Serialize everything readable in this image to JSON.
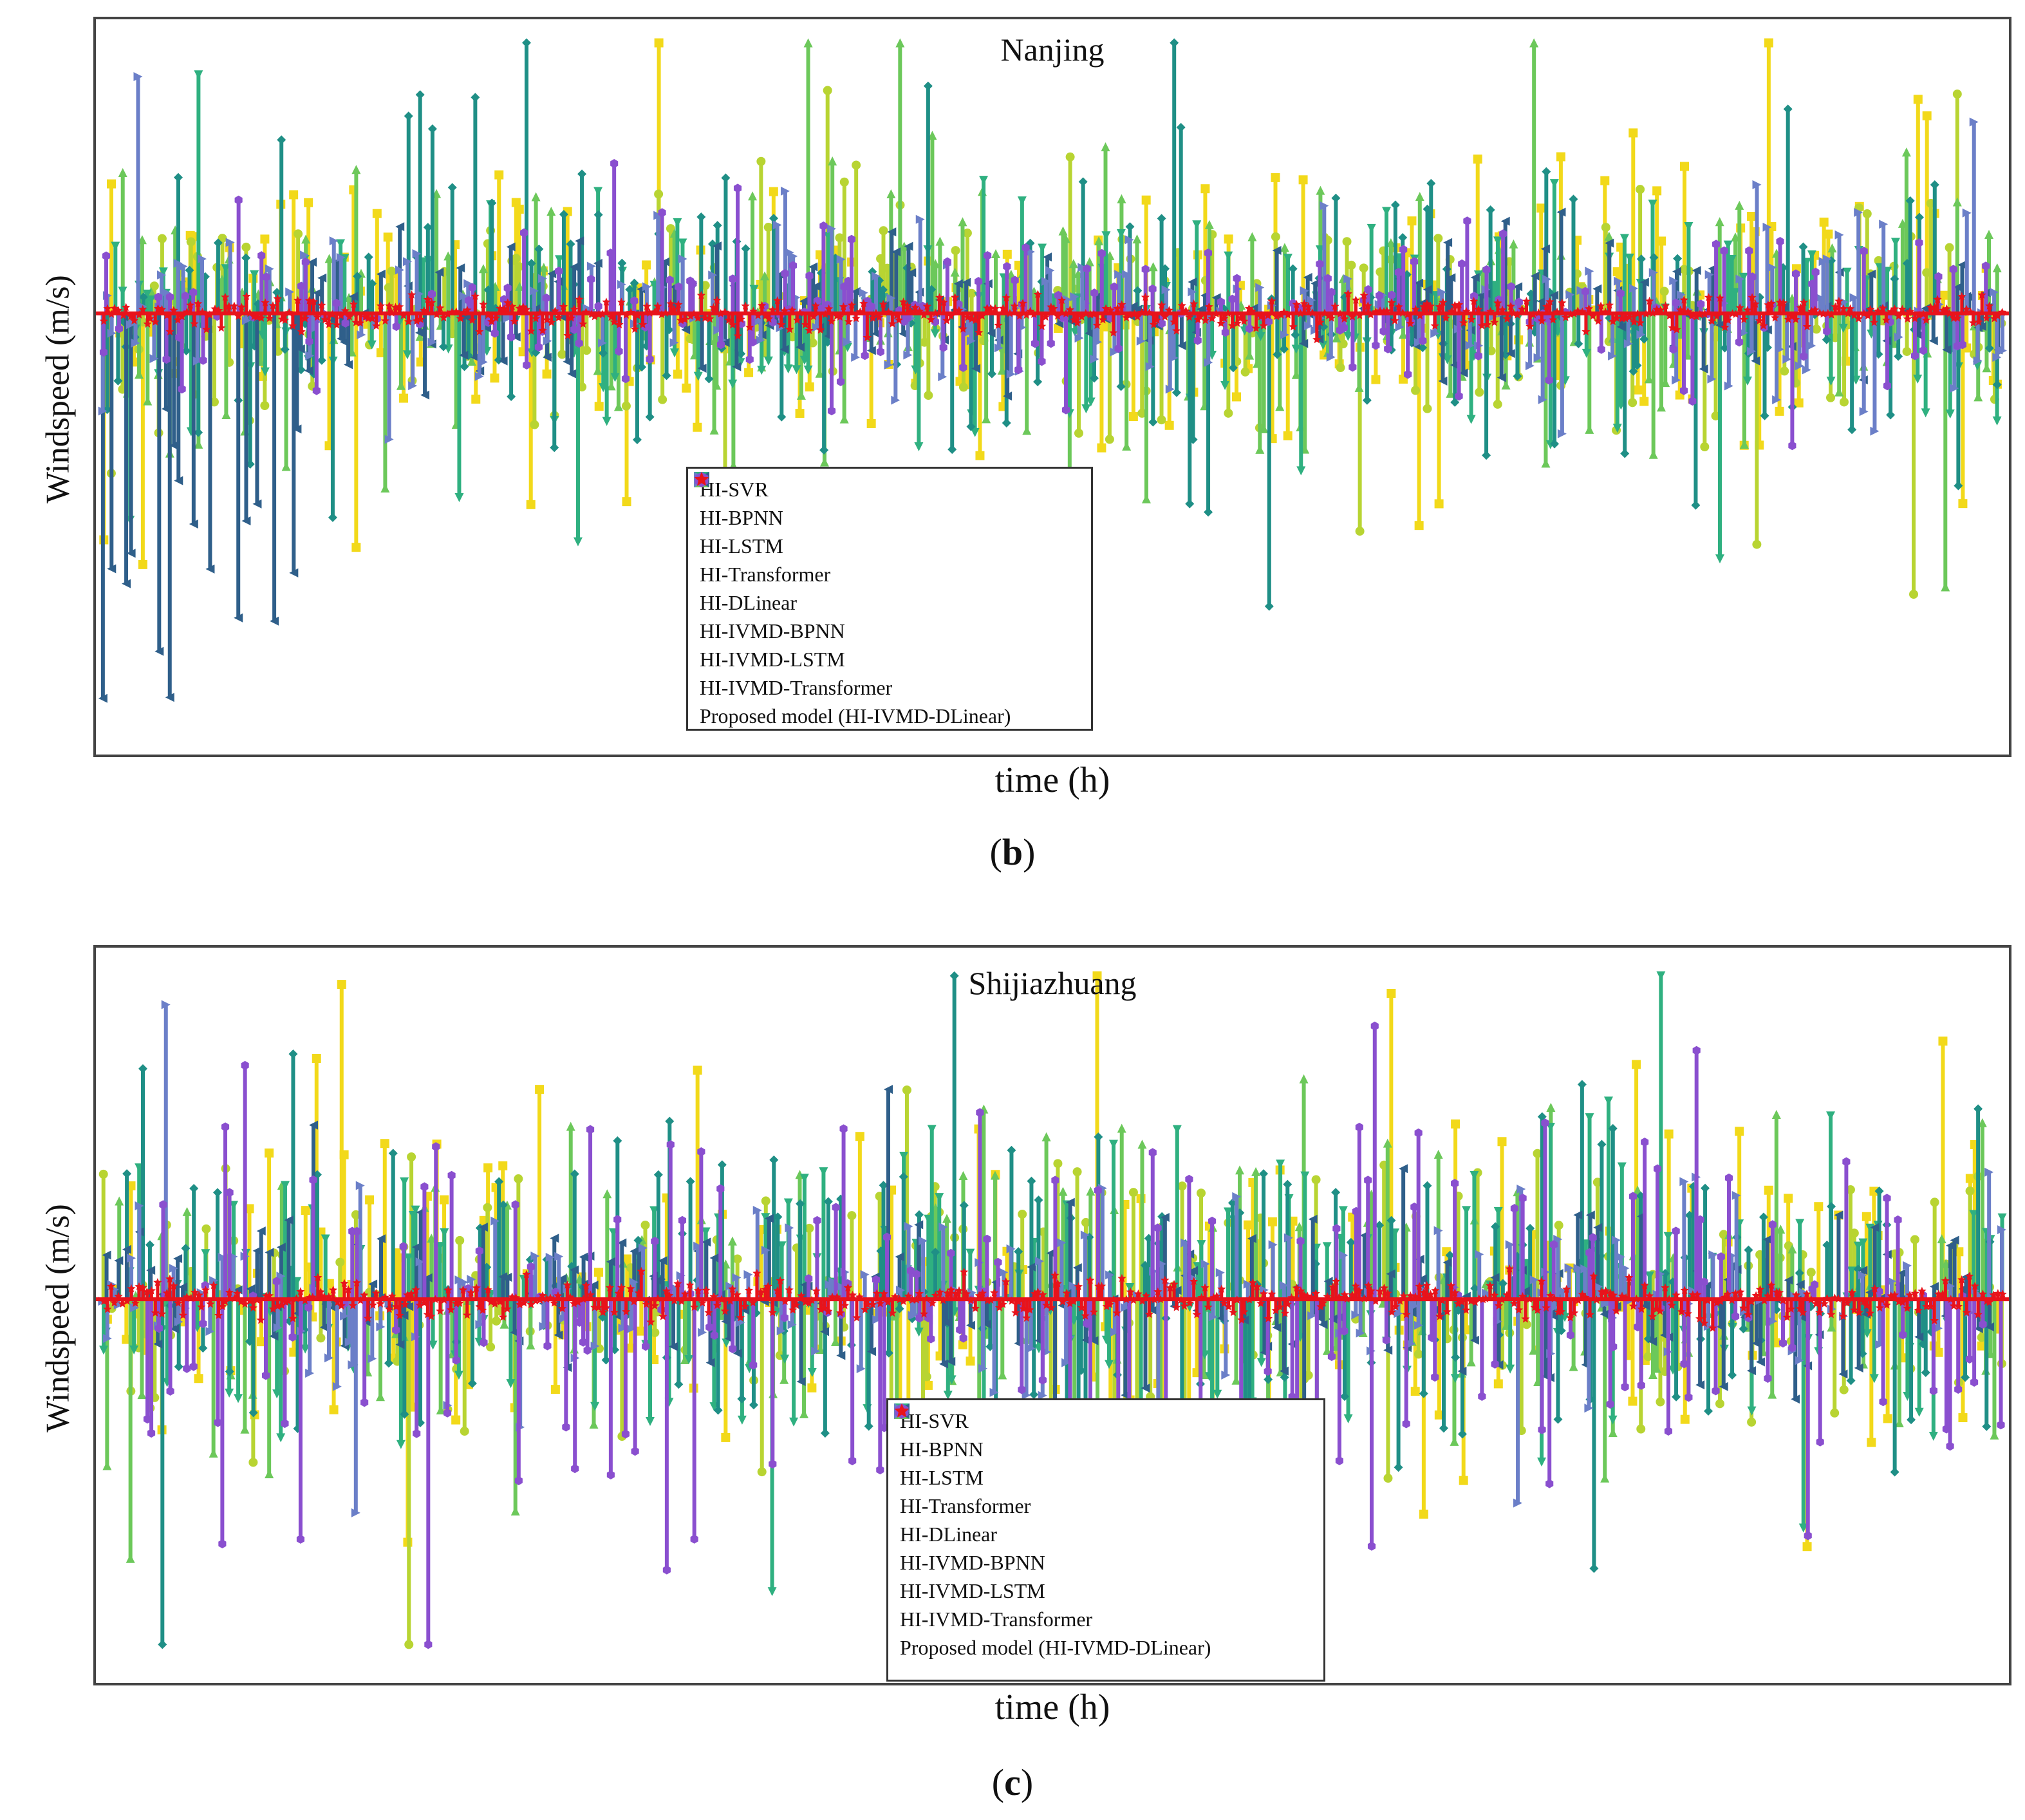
{
  "figure": {
    "xlabel": "time (h)",
    "ylabel": "Windspeed (m/s)",
    "caption_b_open": "(",
    "caption_b_letter": "b",
    "caption_b_close": ")",
    "caption_c_open": "(",
    "caption_c_letter": "c",
    "caption_c_close": ")"
  },
  "legend": [
    {
      "name": "HI-SVR",
      "marker": "square",
      "color": "#f2d91a"
    },
    {
      "name": "HI-BPNN",
      "marker": "circle",
      "color": "#b8d432"
    },
    {
      "name": "HI-LSTM",
      "marker": "triangle-up",
      "color": "#6cc85a"
    },
    {
      "name": "HI-Transformer",
      "marker": "triangle-down",
      "color": "#2fb080"
    },
    {
      "name": "HI-DLinear",
      "marker": "diamond",
      "color": "#1f8f86"
    },
    {
      "name": "HI-IVMD-BPNN",
      "marker": "triangle-left",
      "color": "#2f5f8a"
    },
    {
      "name": "HI-IVMD-LSTM",
      "marker": "triangle-right",
      "color": "#6b7fc8"
    },
    {
      "name": "HI-IVMD-Transformer",
      "marker": "hexagon",
      "color": "#8a4fcf"
    },
    {
      "name": "Proposed model (HI-IVMD-DLinear)",
      "marker": "star",
      "color": "#e8131b"
    }
  ],
  "chart_data": [
    {
      "type": "stem",
      "title": "Nanjing",
      "xlabel": "time (h)",
      "ylabel": "Windspeed (m/s)",
      "n_points": 480,
      "ylim": [
        -1.5,
        1.0
      ],
      "series_amplitude": {
        "HI-SVR": 0.62,
        "HI-BPNN": 0.55,
        "HI-LSTM": 0.55,
        "HI-Transformer": 0.5,
        "HI-DLinear": 0.62,
        "HI-IVMD-BPNN": 0.3,
        "HI-IVMD-LSTM": 0.35,
        "HI-IVMD-Transformer": 0.3,
        "Proposed model (HI-IVMD-DLinear)": 0.06
      },
      "notes": "forecast errors per hour; early segment (first ~50 h) shows large negative HI-IVMD-BPNN errors down to about -1.3"
    },
    {
      "type": "stem",
      "title": "Shijiazhuang",
      "xlabel": "time (h)",
      "ylabel": "Windspeed (m/s)",
      "n_points": 480,
      "ylim": [
        -1.2,
        1.1
      ],
      "series_amplitude": {
        "HI-SVR": 0.6,
        "HI-BPNN": 0.55,
        "HI-LSTM": 0.55,
        "HI-Transformer": 0.5,
        "HI-DLinear": 0.6,
        "HI-IVMD-BPNN": 0.3,
        "HI-IVMD-LSTM": 0.35,
        "HI-IVMD-Transformer": 0.65,
        "Proposed model (HI-IVMD-DLinear)": 0.07
      },
      "notes": "forecast errors per hour; HI-IVMD-Transformer shows large negative spikes to about -0.9"
    }
  ]
}
